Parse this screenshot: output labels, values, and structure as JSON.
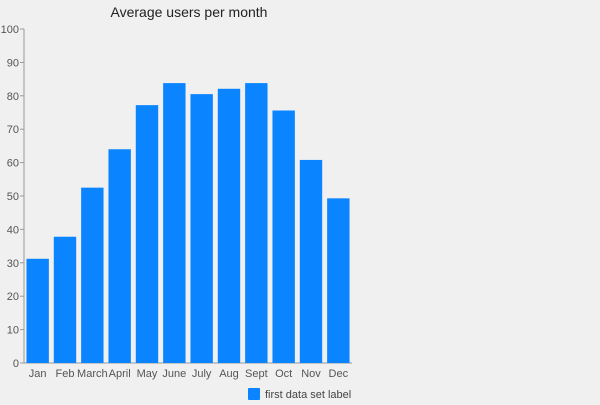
{
  "chart_data": {
    "type": "bar",
    "title": "Average users per month",
    "categories": [
      "Jan",
      "Feb",
      "March",
      "April",
      "May",
      "June",
      "July",
      "Aug",
      "Sept",
      "Oct",
      "Nov",
      "Dec"
    ],
    "series": [
      {
        "name": "first data set label",
        "color": "#0a84ff",
        "values": [
          31.2,
          37.8,
          52.5,
          64.0,
          77.2,
          83.8,
          80.5,
          82.1,
          83.8,
          75.6,
          60.8,
          49.3
        ]
      }
    ],
    "xlabel": "",
    "ylabel": "",
    "ylim": [
      0,
      100
    ],
    "yticks": [
      0,
      10,
      20,
      30,
      40,
      50,
      60,
      70,
      80,
      90,
      100
    ],
    "grid": false,
    "legend_position": "bottom-right"
  }
}
